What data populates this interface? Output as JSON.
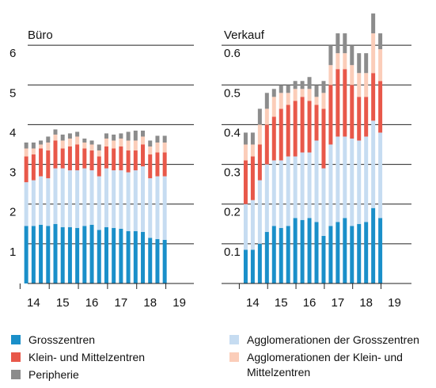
{
  "chart_data": [
    {
      "type": "bar",
      "stacked": true,
      "title": "Büro",
      "x": [
        2013.75,
        2014,
        2014.25,
        2014.5,
        2014.75,
        2015,
        2015.25,
        2015.5,
        2015.75,
        2016,
        2016.25,
        2016.5,
        2016.75,
        2017,
        2017.25,
        2017.5,
        2017.75,
        2018,
        2018.25,
        2018.5
      ],
      "xlim": [
        2013.8,
        2019.5
      ],
      "xticks": [
        {
          "value": 2014,
          "label": "14"
        },
        {
          "value": 2015,
          "label": "15"
        },
        {
          "value": 2016,
          "label": "16"
        },
        {
          "value": 2017,
          "label": "17"
        },
        {
          "value": 2018,
          "label": "18"
        },
        {
          "value": 2019,
          "label": "19"
        }
      ],
      "ylim": [
        0,
        7
      ],
      "yticks": [
        1,
        2,
        3,
        4,
        5,
        6
      ],
      "grid": true,
      "series": [
        {
          "name": "Grosszentren",
          "color": "#1a8fc9",
          "values": [
            1.45,
            1.45,
            1.48,
            1.45,
            1.5,
            1.42,
            1.42,
            1.4,
            1.45,
            1.48,
            1.35,
            1.42,
            1.4,
            1.38,
            1.32,
            1.32,
            1.3,
            1.15,
            1.12,
            1.1
          ]
        },
        {
          "name": "Agglomerationen der Grosszentren",
          "color": "#c6dcf1",
          "values": [
            1.1,
            1.15,
            1.22,
            1.2,
            1.4,
            1.48,
            1.43,
            1.45,
            1.45,
            1.37,
            1.35,
            1.48,
            1.45,
            1.47,
            1.48,
            1.53,
            1.65,
            1.5,
            1.58,
            1.6
          ]
        },
        {
          "name": "Klein- und Mittelzentren",
          "color": "#e8584a",
          "values": [
            0.65,
            0.65,
            0.7,
            0.7,
            0.7,
            0.5,
            0.6,
            0.65,
            0.5,
            0.5,
            0.5,
            0.55,
            0.55,
            0.6,
            0.55,
            0.5,
            0.55,
            0.6,
            0.6,
            0.6
          ]
        },
        {
          "name": "Agglomerationen der Klein- und Mittelzentren",
          "color": "#fbcdb9",
          "values": [
            0.2,
            0.15,
            0.1,
            0.2,
            0.15,
            0.2,
            0.2,
            0.2,
            0.15,
            0.15,
            0.15,
            0.2,
            0.2,
            0.2,
            0.25,
            0.25,
            0.2,
            0.2,
            0.25,
            0.25
          ]
        },
        {
          "name": "Peripherie",
          "color": "#8c8c8c",
          "values": [
            0.15,
            0.15,
            0.1,
            0.15,
            0.13,
            0.15,
            0.13,
            0.12,
            0.1,
            0.1,
            0.15,
            0.13,
            0.15,
            0.13,
            0.22,
            0.25,
            0.15,
            0.15,
            0.17,
            0.17
          ]
        }
      ]
    },
    {
      "type": "bar",
      "stacked": true,
      "title": "Verkauf",
      "x": [
        2013.75,
        2014,
        2014.25,
        2014.5,
        2014.75,
        2015,
        2015.25,
        2015.5,
        2015.75,
        2016,
        2016.25,
        2016.5,
        2016.75,
        2017,
        2017.25,
        2017.5,
        2017.75,
        2018,
        2018.25,
        2018.5
      ],
      "xlim": [
        2012.9,
        2019.6
      ],
      "xticks": [
        {
          "value": 2014,
          "label": "14"
        },
        {
          "value": 2015,
          "label": "15"
        },
        {
          "value": 2016,
          "label": "16"
        },
        {
          "value": 2017,
          "label": "17"
        },
        {
          "value": 2018,
          "label": "18"
        },
        {
          "value": 2019,
          "label": "19"
        }
      ],
      "ylim": [
        0,
        0.7
      ],
      "yticks": [
        0.1,
        0.2,
        0.3,
        0.4,
        0.5,
        0.6
      ],
      "grid": true,
      "series": [
        {
          "name": "Grosszentren",
          "color": "#1a8fc9",
          "values": [
            0.085,
            0.085,
            0.1,
            0.13,
            0.145,
            0.14,
            0.145,
            0.165,
            0.16,
            0.165,
            0.155,
            0.12,
            0.145,
            0.155,
            0.165,
            0.145,
            0.15,
            0.155,
            0.19,
            0.165
          ]
        },
        {
          "name": "Agglomerationen der Grosszentren",
          "color": "#c6dcf1",
          "values": [
            0.115,
            0.125,
            0.16,
            0.17,
            0.165,
            0.17,
            0.175,
            0.155,
            0.17,
            0.165,
            0.205,
            0.17,
            0.205,
            0.215,
            0.205,
            0.22,
            0.21,
            0.215,
            0.22,
            0.215
          ]
        },
        {
          "name": "Klein- und Mittelzentren",
          "color": "#e8584a",
          "values": [
            0.11,
            0.11,
            0.09,
            0.1,
            0.11,
            0.13,
            0.13,
            0.14,
            0.14,
            0.13,
            0.09,
            0.15,
            0.15,
            0.17,
            0.17,
            0.135,
            0.11,
            0.1,
            0.12,
            0.13
          ]
        },
        {
          "name": "Agglomerationen der Klein- und Mittelzentren",
          "color": "#fbcdb9",
          "values": [
            0.04,
            0.03,
            0.05,
            0.04,
            0.05,
            0.04,
            0.03,
            0.03,
            0.02,
            0.03,
            0.02,
            0.04,
            0.05,
            0.04,
            0.04,
            0.05,
            0.06,
            0.06,
            0.1,
            0.08
          ]
        },
        {
          "name": "Peripherie",
          "color": "#8c8c8c",
          "values": [
            0.03,
            0.03,
            0.04,
            0.04,
            0.02,
            0.02,
            0.02,
            0.02,
            0.02,
            0.03,
            0.03,
            0.03,
            0.05,
            0.05,
            0.05,
            0.05,
            0.05,
            0.05,
            0.05,
            0.04
          ]
        }
      ]
    }
  ]
}
